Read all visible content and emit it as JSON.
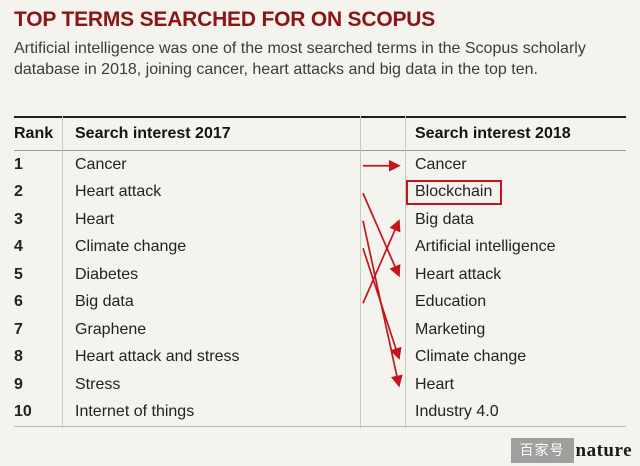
{
  "header": {
    "title": "TOP TERMS SEARCHED FOR ON SCOPUS",
    "subtitle": "Artificial intelligence was one of the most searched terms in the Scopus scholarly database in 2018, joining cancer, heart attacks and big data in the top ten."
  },
  "chart_data": {
    "type": "table",
    "title": "TOP TERMS SEARCHED FOR ON SCOPUS",
    "columns": [
      "Rank",
      "Search interest 2017",
      "Search interest 2018"
    ],
    "rows": [
      [
        "1",
        "Cancer",
        "Cancer"
      ],
      [
        "2",
        "Heart attack",
        "Blockchain"
      ],
      [
        "3",
        "Heart",
        "Big data"
      ],
      [
        "4",
        "Climate change",
        "Artificial intelligence"
      ],
      [
        "5",
        "Diabetes",
        "Heart attack"
      ],
      [
        "6",
        "Big data",
        "Education"
      ],
      [
        "7",
        "Graphene",
        "Marketing"
      ],
      [
        "8",
        "Heart attack and stress",
        "Climate change"
      ],
      [
        "9",
        "Stress",
        "Heart"
      ],
      [
        "10",
        "Internet of things",
        "Industry 4.0"
      ]
    ],
    "arrows_2017_to_2018": [
      {
        "term": "Cancer",
        "from_rank": 1,
        "to_rank": 1
      },
      {
        "term": "Heart attack",
        "from_rank": 2,
        "to_rank": 5
      },
      {
        "term": "Heart",
        "from_rank": 3,
        "to_rank": 9
      },
      {
        "term": "Climate change",
        "from_rank": 4,
        "to_rank": 8
      },
      {
        "term": "Big data",
        "from_rank": 6,
        "to_rank": 3
      }
    ],
    "highlighted_cell": {
      "rank": 2,
      "column": "Search interest 2018",
      "term": "Blockchain"
    },
    "legend_position": "none",
    "grid": false
  },
  "colors": {
    "title": "#8e1413",
    "arrow": "#c3151b",
    "highlight_box": "#c3151b",
    "background": "#f4f3ee",
    "text": "#222222"
  },
  "watermark": {
    "badge": "百家号",
    "brand": "nature"
  }
}
